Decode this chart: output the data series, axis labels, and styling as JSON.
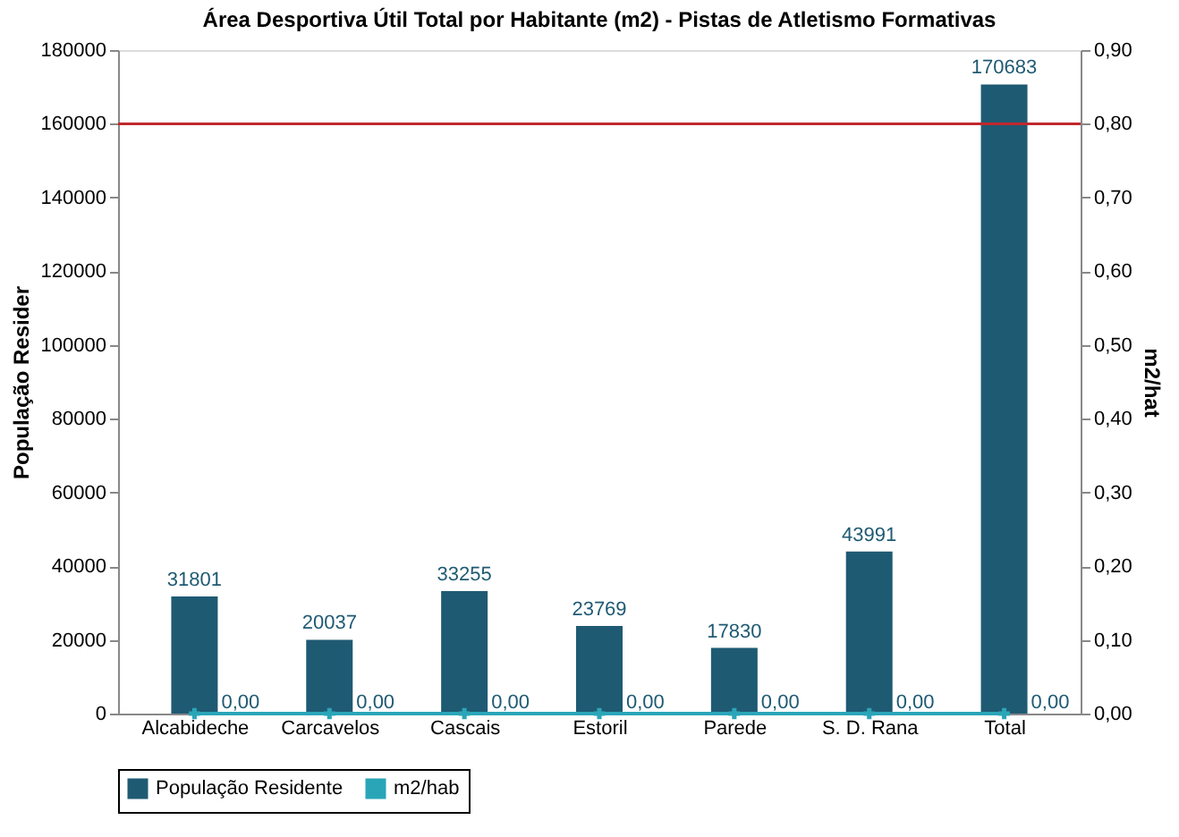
{
  "chart_data": {
    "type": "bar",
    "title": "Área Desportiva Útil Total por Habitante (m2) - Pistas de Atletismo Formativas",
    "categories": [
      "Alcabideche",
      "Carcavelos",
      "Cascais",
      "Estoril",
      "Parede",
      "S. D. Rana",
      "Total"
    ],
    "series": [
      {
        "name": "População Residente",
        "color": "#1f5a73",
        "values": [
          31801,
          20037,
          33255,
          23769,
          17830,
          43991,
          170683
        ]
      },
      {
        "name": "m2/hab",
        "type": "line",
        "axis": "y2",
        "color": "#2aa5b8",
        "values": [
          0,
          0,
          0,
          0,
          0,
          0,
          0
        ],
        "value_labels": [
          "0,00",
          "0,00",
          "0,00",
          "0,00",
          "0,00",
          "0,00",
          "0,00"
        ]
      }
    ],
    "ylabel": "População Resider",
    "y2label": "m2/hat",
    "ylim": [
      0,
      180000
    ],
    "yticks": [
      0,
      20000,
      40000,
      60000,
      80000,
      100000,
      120000,
      140000,
      160000,
      180000
    ],
    "y2lim": [
      0,
      0.9
    ],
    "y2ticks": [
      {
        "value": 0,
        "label": "0,00"
      },
      {
        "value": 0.1,
        "label": "0,10"
      },
      {
        "value": 0.2,
        "label": "0,20"
      },
      {
        "value": 0.3,
        "label": "0,30"
      },
      {
        "value": 0.4,
        "label": "0,40"
      },
      {
        "value": 0.5,
        "label": "0,50"
      },
      {
        "value": 0.6,
        "label": "0,60"
      },
      {
        "value": 0.7,
        "label": "0,70"
      },
      {
        "value": 0.8,
        "label": "0,80"
      },
      {
        "value": 0.9,
        "label": "0,90"
      }
    ],
    "ref_lines": [
      {
        "axis": "y",
        "value": 160000,
        "color": "#c0282d"
      }
    ],
    "data_labels": true,
    "legend": "bottom",
    "marker": "cross",
    "grid": false
  }
}
